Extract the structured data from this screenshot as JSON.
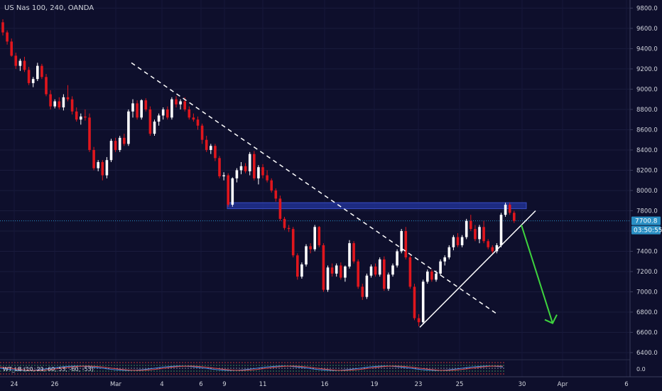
{
  "header": {
    "symbol_title": "US Nas 100, 240, OANDA"
  },
  "indicator": {
    "title": "WT_LB (10, 21, 60, 53, -60, -53)",
    "zero_label": "0.0"
  },
  "price_axis": {
    "ticks": [
      "9800.0",
      "9600.0",
      "9400.0",
      "9200.0",
      "9000.0",
      "8800.0",
      "8600.0",
      "8400.0",
      "8200.0",
      "8000.0",
      "7800.0",
      "7600.0",
      "7400.0",
      "7200.0",
      "7000.0",
      "6800.0",
      "6600.0",
      "6400.0"
    ],
    "tick_values": [
      9800,
      9600,
      9400,
      9200,
      9000,
      8800,
      8600,
      8400,
      8200,
      8000,
      7800,
      7600,
      7400,
      7200,
      7000,
      6800,
      6600,
      6400
    ],
    "last_price_label": "7700.8",
    "countdown_label": "03:50:55"
  },
  "time_axis": {
    "labels": [
      "24",
      "26",
      "Mar",
      "4",
      "6",
      "9",
      "11",
      "16",
      "19",
      "23",
      "25",
      "30",
      "Apr",
      "6"
    ]
  },
  "chart_data": {
    "type": "candlestick",
    "symbol": "US Nas 100",
    "timeframe": "240",
    "source": "OANDA",
    "last_price": 7700.8,
    "y_range": [
      6330,
      9880
    ],
    "colors": {
      "background": "#0e0f2c",
      "up": "#ffffff",
      "down": "#e0161d",
      "resistance_zone": "#1f2f8c",
      "trendline": "#ffffff",
      "projection_arrow": "#3ed43e",
      "last_price_line": "#2a8fc4"
    },
    "candles": [
      [
        9660,
        9690,
        9530,
        9560
      ],
      [
        9560,
        9580,
        9440,
        9470
      ],
      [
        9470,
        9500,
        9320,
        9330
      ],
      [
        9330,
        9360,
        9200,
        9230
      ],
      [
        9230,
        9300,
        9180,
        9280
      ],
      [
        9280,
        9320,
        9170,
        9190
      ],
      [
        9190,
        9220,
        9040,
        9060
      ],
      [
        9060,
        9120,
        9020,
        9100
      ],
      [
        9100,
        9260,
        9080,
        9230
      ],
      [
        9230,
        9250,
        9100,
        9120
      ],
      [
        9120,
        9150,
        8930,
        8950
      ],
      [
        8950,
        8990,
        8800,
        8830
      ],
      [
        8830,
        8900,
        8810,
        8880
      ],
      [
        8880,
        8920,
        8800,
        8820
      ],
      [
        8820,
        8950,
        8790,
        8920
      ],
      [
        8920,
        9040,
        8880,
        8900
      ],
      [
        8900,
        8930,
        8750,
        8780
      ],
      [
        8780,
        8820,
        8680,
        8700
      ],
      [
        8700,
        8760,
        8650,
        8730
      ],
      [
        8730,
        8800,
        8690,
        8720
      ],
      [
        8720,
        8760,
        8380,
        8400
      ],
      [
        8400,
        8430,
        8200,
        8220
      ],
      [
        8220,
        8300,
        8190,
        8280
      ],
      [
        8280,
        8300,
        8100,
        8150
      ],
      [
        8150,
        8330,
        8120,
        8300
      ],
      [
        8300,
        8510,
        8280,
        8490
      ],
      [
        8490,
        8520,
        8380,
        8400
      ],
      [
        8400,
        8540,
        8380,
        8520
      ],
      [
        8520,
        8560,
        8440,
        8460
      ],
      [
        8460,
        8800,
        8440,
        8780
      ],
      [
        8780,
        8900,
        8720,
        8860
      ],
      [
        8860,
        8890,
        8700,
        8720
      ],
      [
        8720,
        8900,
        8700,
        8890
      ],
      [
        8890,
        8910,
        8780,
        8800
      ],
      [
        8800,
        8830,
        8540,
        8560
      ],
      [
        8560,
        8700,
        8540,
        8680
      ],
      [
        8680,
        8760,
        8640,
        8740
      ],
      [
        8740,
        8820,
        8700,
        8800
      ],
      [
        8800,
        8830,
        8700,
        8720
      ],
      [
        8720,
        8920,
        8700,
        8900
      ],
      [
        8900,
        8930,
        8820,
        8850
      ],
      [
        8850,
        8900,
        8800,
        8880
      ],
      [
        8880,
        8920,
        8780,
        8800
      ],
      [
        8800,
        8830,
        8700,
        8720
      ],
      [
        8720,
        8760,
        8680,
        8700
      ],
      [
        8700,
        8730,
        8600,
        8640
      ],
      [
        8640,
        8660,
        8460,
        8500
      ],
      [
        8500,
        8540,
        8380,
        8400
      ],
      [
        8400,
        8460,
        8360,
        8440
      ],
      [
        8440,
        8460,
        8290,
        8320
      ],
      [
        8320,
        8340,
        8120,
        8140
      ],
      [
        8140,
        8180,
        8100,
        8150
      ],
      [
        8150,
        8170,
        7840,
        7860
      ],
      [
        7860,
        8130,
        7840,
        8120
      ],
      [
        8120,
        8220,
        8080,
        8200
      ],
      [
        8200,
        8280,
        8160,
        8240
      ],
      [
        8240,
        8270,
        8170,
        8190
      ],
      [
        8190,
        8380,
        8150,
        8360
      ],
      [
        8360,
        8390,
        8100,
        8120
      ],
      [
        8120,
        8250,
        8060,
        8230
      ],
      [
        8230,
        8260,
        8120,
        8150
      ],
      [
        8150,
        8200,
        8080,
        8100
      ],
      [
        8100,
        8120,
        7980,
        8000
      ],
      [
        8000,
        8020,
        7890,
        7920
      ],
      [
        7920,
        7950,
        7700,
        7720
      ],
      [
        7720,
        7740,
        7610,
        7630
      ],
      [
        7630,
        7660,
        7590,
        7620
      ],
      [
        7620,
        7640,
        7340,
        7360
      ],
      [
        7360,
        7380,
        7120,
        7150
      ],
      [
        7150,
        7290,
        7130,
        7270
      ],
      [
        7270,
        7470,
        7250,
        7450
      ],
      [
        7450,
        7480,
        7380,
        7420
      ],
      [
        7420,
        7660,
        7400,
        7640
      ],
      [
        7640,
        7650,
        7440,
        7460
      ],
      [
        7460,
        7480,
        7000,
        7020
      ],
      [
        7020,
        7260,
        7000,
        7240
      ],
      [
        7240,
        7280,
        7150,
        7180
      ],
      [
        7180,
        7280,
        7150,
        7260
      ],
      [
        7260,
        7290,
        7120,
        7140
      ],
      [
        7140,
        7260,
        7100,
        7250
      ],
      [
        7250,
        7510,
        7230,
        7480
      ],
      [
        7480,
        7500,
        7280,
        7300
      ],
      [
        7300,
        7320,
        7030,
        7050
      ],
      [
        7050,
        7080,
        6920,
        6950
      ],
      [
        6950,
        7180,
        6930,
        7160
      ],
      [
        7160,
        7270,
        7140,
        7250
      ],
      [
        7250,
        7280,
        7150,
        7170
      ],
      [
        7170,
        7340,
        7150,
        7320
      ],
      [
        7320,
        7350,
        7010,
        7030
      ],
      [
        7030,
        7190,
        7010,
        7170
      ],
      [
        7170,
        7280,
        7150,
        7260
      ],
      [
        7260,
        7420,
        7240,
        7400
      ],
      [
        7400,
        7620,
        7380,
        7600
      ],
      [
        7600,
        7640,
        7320,
        7340
      ],
      [
        7340,
        7360,
        7030,
        7050
      ],
      [
        7050,
        7080,
        6720,
        6740
      ],
      [
        6740,
        6780,
        6660,
        6700
      ],
      [
        6700,
        7120,
        6680,
        7100
      ],
      [
        7100,
        7220,
        7080,
        7200
      ],
      [
        7200,
        7220,
        7100,
        7120
      ],
      [
        7120,
        7210,
        7100,
        7180
      ],
      [
        7180,
        7320,
        7160,
        7300
      ],
      [
        7300,
        7360,
        7260,
        7340
      ],
      [
        7340,
        7460,
        7320,
        7440
      ],
      [
        7440,
        7560,
        7410,
        7540
      ],
      [
        7540,
        7580,
        7440,
        7460
      ],
      [
        7460,
        7560,
        7440,
        7540
      ],
      [
        7540,
        7720,
        7520,
        7700
      ],
      [
        7700,
        7760,
        7600,
        7620
      ],
      [
        7620,
        7660,
        7500,
        7520
      ],
      [
        7520,
        7660,
        7480,
        7640
      ],
      [
        7640,
        7700,
        7480,
        7500
      ],
      [
        7500,
        7520,
        7420,
        7440
      ],
      [
        7440,
        7460,
        7380,
        7400
      ],
      [
        7400,
        7480,
        7380,
        7460
      ],
      [
        7460,
        7780,
        7440,
        7760
      ],
      [
        7760,
        7880,
        7740,
        7860
      ],
      [
        7860,
        7880,
        7760,
        7780
      ],
      [
        7780,
        7800,
        7680,
        7700
      ]
    ],
    "drawings": {
      "resistance_zone": {
        "from": 7820,
        "to": 7880
      },
      "descending_trendline": {
        "from_price": 9260,
        "to_price": 6780
      },
      "ascending_trendline": {
        "from_price": 6650,
        "to_price": 7800
      },
      "projection_arrow": {
        "from_price": 7660,
        "to_price": 6690
      }
    },
    "indicator": {
      "name": "WT_LB",
      "params": [
        10,
        21,
        60,
        53,
        -60,
        -53
      ]
    }
  }
}
